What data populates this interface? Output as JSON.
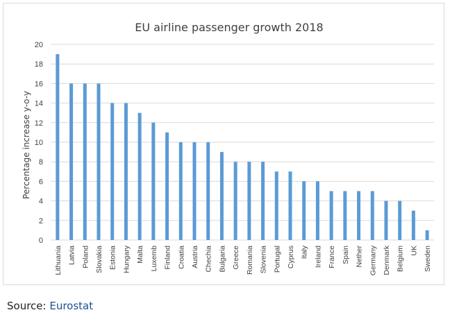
{
  "chart_data": {
    "type": "bar",
    "title": "EU airline passenger growth 2018",
    "xlabel": "",
    "ylabel": "Percentage increase y-o-y",
    "ylim": [
      0,
      20
    ],
    "yticks": [
      0,
      2,
      4,
      6,
      8,
      10,
      12,
      14,
      16,
      18,
      20
    ],
    "grid": true,
    "bar_color": "#5b9bd5",
    "categories": [
      "Lithuania",
      "Latvia",
      "Poland",
      "Slovakia",
      "Estonia",
      "Hungary",
      "Malta",
      "Luxemb",
      "Finland",
      "Croatia",
      "Austria",
      "Chechia",
      "Bulgaria",
      "Greece",
      "Romania",
      "Slovenia",
      "Portugal",
      "Cyprus",
      "Italy",
      "Ireland",
      "France",
      "Spain",
      "Nether",
      "Germany",
      "Denmark",
      "Belgium",
      "UK",
      "Sweden"
    ],
    "values": [
      19,
      16,
      16,
      16,
      14,
      14,
      13,
      12,
      11,
      10,
      10,
      10,
      9,
      8,
      8,
      8,
      7,
      7,
      6,
      6,
      5,
      5,
      5,
      5,
      4,
      4,
      3,
      1
    ]
  },
  "source": {
    "label": "Source:",
    "link_text": "Eurostat",
    "link_color": "#1f4e96"
  }
}
